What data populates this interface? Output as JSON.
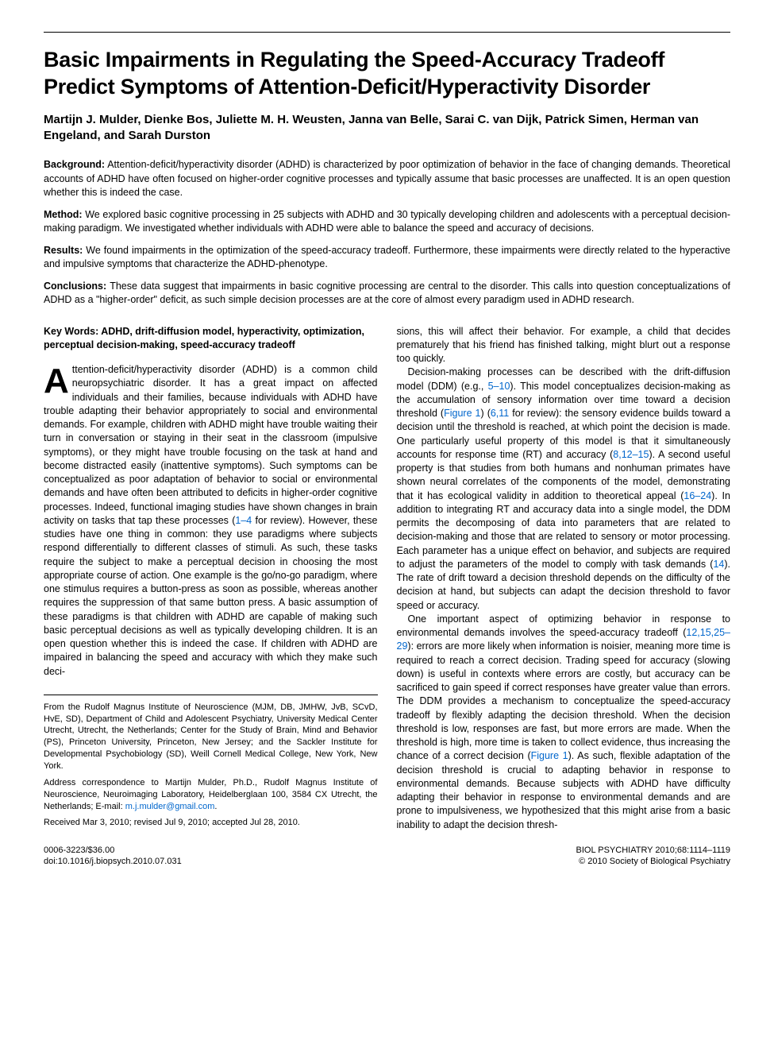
{
  "title": "Basic Impairments in Regulating the Speed-Accuracy Tradeoff Predict Symptoms of Attention-Deficit/Hyperactivity Disorder",
  "authors": "Martijn J. Mulder, Dienke Bos, Juliette M. H. Weusten, Janna van Belle, Sarai C. van Dijk, Patrick Simen, Herman van Engeland, and Sarah Durston",
  "abstract": {
    "background": {
      "label": "Background:",
      "text": " Attention-deficit/hyperactivity disorder (ADHD) is characterized by poor optimization of behavior in the face of changing demands. Theoretical accounts of ADHD have often focused on higher-order cognitive processes and typically assume that basic processes are unaffected. It is an open question whether this is indeed the case."
    },
    "method": {
      "label": "Method:",
      "text": " We explored basic cognitive processing in 25 subjects with ADHD and 30 typically developing children and adolescents with a perceptual decision-making paradigm. We investigated whether individuals with ADHD were able to balance the speed and accuracy of decisions."
    },
    "results": {
      "label": "Results:",
      "text": " We found impairments in the optimization of the speed-accuracy tradeoff. Furthermore, these impairments were directly related to the hyperactive and impulsive symptoms that characterize the ADHD-phenotype."
    },
    "conclusions": {
      "label": "Conclusions:",
      "text": " These data suggest that impairments in basic cognitive processing are central to the disorder. This calls into question conceptualizations of ADHD as a \"higher-order\" deficit, as such simple decision processes are at the core of almost every paradigm used in ADHD research."
    }
  },
  "keywords": "Key Words: ADHD, drift-diffusion model, hyperactivity, optimization, perceptual decision-making, speed-accuracy tradeoff",
  "body": {
    "col1_p1_dropcap": "A",
    "col1_p1": "ttention-deficit/hyperactivity disorder (ADHD) is a common child neuropsychiatric disorder. It has a great impact on affected individuals and their families, because individuals with ADHD have trouble adapting their behavior appropriately to social and environmental demands. For example, children with ADHD might have trouble waiting their turn in conversation or staying in their seat in the classroom (impulsive symptoms), or they might have trouble focusing on the task at hand and become distracted easily (inattentive symptoms). Such symptoms can be conceptualized as poor adaptation of behavior to social or environmental demands and have often been attributed to deficits in higher-order cognitive processes. Indeed, functional imaging studies have shown changes in brain activity on tasks that tap these processes (",
    "col1_p1_ref1": "1–4",
    "col1_p1b": " for review). However, these studies have one thing in common: they use paradigms where subjects respond differentially to different classes of stimuli. As such, these tasks require the subject to make a perceptual decision in choosing the most appropriate course of action. One example is the go/no-go paradigm, where one stimulus requires a button-press as soon as possible, whereas another requires the suppression of that same button press. A basic assumption of these paradigms is that children with ADHD are capable of making such basic perceptual decisions as well as typically developing children. It is an open question whether this is indeed the case. If children with ADHD are impaired in balancing the speed and accuracy with which they make such deci-",
    "col2_p1": "sions, this will affect their behavior. For example, a child that decides prematurely that his friend has finished talking, might blurt out a response too quickly.",
    "col2_p2a": "Decision-making processes can be described with the drift-diffusion model (DDM) (e.g., ",
    "col2_p2_ref1": "5–10",
    "col2_p2b": "). This model conceptualizes decision-making as the accumulation of sensory information over time toward a decision threshold (",
    "col2_p2_ref2": "Figure 1",
    "col2_p2c": ") (",
    "col2_p2_ref3": "6,11",
    "col2_p2d": " for review): the sensory evidence builds toward a decision until the threshold is reached, at which point the decision is made. One particularly useful property of this model is that it simultaneously accounts for response time (RT) and accuracy (",
    "col2_p2_ref4": "8,12–15",
    "col2_p2e": "). A second useful property is that studies from both humans and nonhuman primates have shown neural correlates of the components of the model, demonstrating that it has ecological validity in addition to theoretical appeal (",
    "col2_p2_ref5": "16–24",
    "col2_p2f": "). In addition to integrating RT and accuracy data into a single model, the DDM permits the decomposing of data into parameters that are related to decision-making and those that are related to sensory or motor processing. Each parameter has a unique effect on behavior, and subjects are required to adjust the parameters of the model to comply with task demands (",
    "col2_p2_ref6": "14",
    "col2_p2g": "). The rate of drift toward a decision threshold depends on the difficulty of the decision at hand, but subjects can adapt the decision threshold to favor speed or accuracy.",
    "col2_p3a": "One important aspect of optimizing behavior in response to environmental demands involves the speed-accuracy tradeoff (",
    "col2_p3_ref1": "12,15,25–29",
    "col2_p3b": "): errors are more likely when information is noisier, meaning more time is required to reach a correct decision. Trading speed for accuracy (slowing down) is useful in contexts where errors are costly, but accuracy can be sacrificed to gain speed if correct responses have greater value than errors. The DDM provides a mechanism to conceptualize the speed-accuracy tradeoff by flexibly adapting the decision threshold. When the decision threshold is low, responses are fast, but more errors are made. When the threshold is high, more time is taken to collect evidence, thus increasing the chance of a correct decision (",
    "col2_p3_ref2": "Figure 1",
    "col2_p3c": "). As such, flexible adaptation of the decision threshold is crucial to adapting behavior in response to environmental demands. Because subjects with ADHD have difficulty adapting their behavior in response to environmental demands and are prone to impulsiveness, we hypothesized that this might arise from a basic inability to adapt the decision thresh-"
  },
  "affiliations": {
    "from": "From the Rudolf Magnus Institute of Neuroscience (MJM, DB, JMHW, JvB, SCvD, HvE, SD), Department of Child and Adolescent Psychiatry, University Medical Center Utrecht, Utrecht, the Netherlands; Center for the Study of Brain, Mind and Behavior (PS), Princeton University, Princeton, New Jersey; and the Sackler Institute for Developmental Psychobiology (SD), Weill Cornell Medical College, New York, New York.",
    "address_a": "Address correspondence to Martijn Mulder, Ph.D., Rudolf Magnus Institute of Neuroscience, Neuroimaging Laboratory, Heidelberglaan 100, 3584 CX Utrecht, the Netherlands; E-mail: ",
    "address_email": "m.j.mulder@gmail.com",
    "address_b": ".",
    "received": "Received Mar 3, 2010; revised Jul 9, 2010; accepted Jul 28, 2010."
  },
  "footer": {
    "left_line1": "0006-3223/$36.00",
    "left_line2": "doi:10.1016/j.biopsych.2010.07.031",
    "right_line1": "BIOL PSYCHIATRY 2010;68:1114–1119",
    "right_line2": "© 2010 Society of Biological Psychiatry"
  },
  "colors": {
    "text": "#000000",
    "link": "#0066cc",
    "background": "#ffffff"
  }
}
